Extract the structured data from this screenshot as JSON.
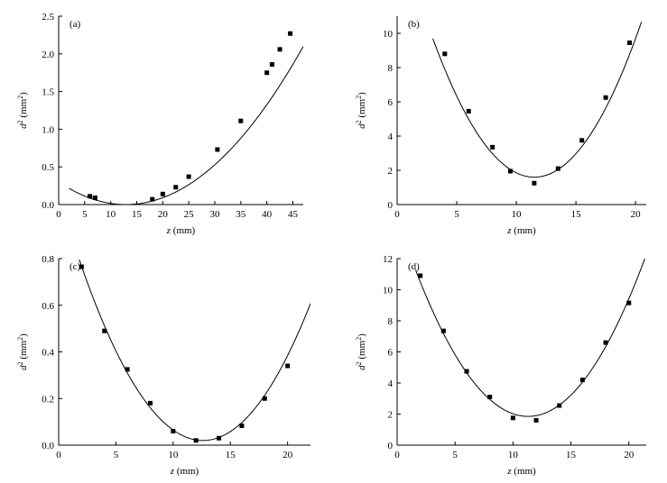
{
  "chart_data": [
    {
      "type": "scatter",
      "panel_label": "(a)",
      "xlabel_var": "z",
      "xlabel_unit": " (mm)",
      "ylabel_var": "d",
      "ylabel_sup": "2",
      "ylabel_unit": " (mm",
      "ylabel_unit_sup": "2",
      "ylabel_close": ")",
      "xlim": [
        0,
        47
      ],
      "ylim": [
        0,
        2.5
      ],
      "xticks": [
        0,
        5,
        10,
        15,
        20,
        25,
        30,
        35,
        40,
        45
      ],
      "yticks": [
        0.0,
        0.5,
        1.0,
        1.5,
        2.0,
        2.5
      ],
      "ytick_labels": [
        "0.0",
        "0.5",
        "1.0",
        "1.5",
        "2.0",
        "2.5"
      ],
      "grid": false,
      "points": [
        {
          "x": 6,
          "y": 0.11
        },
        {
          "x": 7,
          "y": 0.09
        },
        {
          "x": 18,
          "y": 0.07
        },
        {
          "x": 20,
          "y": 0.14
        },
        {
          "x": 22.5,
          "y": 0.23
        },
        {
          "x": 25,
          "y": 0.37
        },
        {
          "x": 30.5,
          "y": 0.73
        },
        {
          "x": 35,
          "y": 1.11
        },
        {
          "x": 40,
          "y": 1.75
        },
        {
          "x": 41,
          "y": 1.86
        },
        {
          "x": 42.5,
          "y": 2.06
        },
        {
          "x": 44.5,
          "y": 2.27
        }
      ],
      "fit": {
        "xmin": 2,
        "xmax": 47,
        "a": 0.001805,
        "x0": 12.9,
        "c": 0.0
      }
    },
    {
      "type": "scatter",
      "panel_label": "(b)",
      "xlabel_var": "z",
      "xlabel_unit": " (mm)",
      "ylabel_var": "d",
      "ylabel_sup": "2",
      "ylabel_unit": " (mm",
      "ylabel_unit_sup": "2",
      "ylabel_close": ")",
      "xlim": [
        0,
        20.9
      ],
      "ylim": [
        0,
        11
      ],
      "xticks": [
        0,
        5,
        10,
        15,
        20
      ],
      "yticks": [
        0,
        2,
        4,
        6,
        8,
        10
      ],
      "ytick_labels": [
        "0",
        "2",
        "4",
        "6",
        "8",
        "10"
      ],
      "grid": false,
      "points": [
        {
          "x": 4,
          "y": 8.8
        },
        {
          "x": 6,
          "y": 5.45
        },
        {
          "x": 8,
          "y": 3.35
        },
        {
          "x": 9.5,
          "y": 1.95
        },
        {
          "x": 11.5,
          "y": 1.25
        },
        {
          "x": 13.5,
          "y": 2.1
        },
        {
          "x": 15.5,
          "y": 3.75
        },
        {
          "x": 17.5,
          "y": 6.25
        },
        {
          "x": 19.5,
          "y": 9.45
        }
      ],
      "fit": {
        "xmin": 3.0,
        "xmax": 20.5,
        "a": 0.112,
        "x0": 11.5,
        "c": 1.6
      }
    },
    {
      "type": "scatter",
      "panel_label": "(c)",
      "xlabel_var": "z",
      "xlabel_unit": " (mm)",
      "ylabel_var": "d",
      "ylabel_sup": "2",
      "ylabel_unit": " (mm",
      "ylabel_unit_sup": "2",
      "ylabel_close": ")",
      "xlim": [
        0,
        22
      ],
      "ylim": [
        0,
        0.8
      ],
      "xticks": [
        0,
        5,
        10,
        15,
        20
      ],
      "yticks": [
        0.0,
        0.2,
        0.4,
        0.6,
        0.8
      ],
      "ytick_labels": [
        "0.0",
        "0.2",
        "0.4",
        "0.6",
        "0.8"
      ],
      "grid": false,
      "points": [
        {
          "x": 2,
          "y": 0.765
        },
        {
          "x": 4,
          "y": 0.49
        },
        {
          "x": 6,
          "y": 0.325
        },
        {
          "x": 8,
          "y": 0.18
        },
        {
          "x": 10,
          "y": 0.06
        },
        {
          "x": 12,
          "y": 0.02
        },
        {
          "x": 14,
          "y": 0.03
        },
        {
          "x": 16,
          "y": 0.083
        },
        {
          "x": 18,
          "y": 0.2
        },
        {
          "x": 20,
          "y": 0.34
        }
      ],
      "fit": {
        "xmin": 1.8,
        "xmax": 22,
        "a": 0.00665,
        "x0": 12.6,
        "c": 0.02
      }
    },
    {
      "type": "scatter",
      "panel_label": "(d)",
      "xlabel_var": "z",
      "xlabel_unit": " (mm)",
      "ylabel_var": "d",
      "ylabel_sup": "2",
      "ylabel_unit": " (mm",
      "ylabel_unit_sup": "2",
      "ylabel_close": ")",
      "xlim": [
        0,
        21.5
      ],
      "ylim": [
        0,
        12
      ],
      "xticks": [
        0,
        5,
        10,
        15,
        20
      ],
      "yticks": [
        0,
        2,
        4,
        6,
        8,
        10,
        12
      ],
      "ytick_labels": [
        "0",
        "2",
        "4",
        "6",
        "8",
        "10",
        "12"
      ],
      "grid": false,
      "points": [
        {
          "x": 2,
          "y": 10.9
        },
        {
          "x": 4,
          "y": 7.35
        },
        {
          "x": 6,
          "y": 4.75
        },
        {
          "x": 8,
          "y": 3.1
        },
        {
          "x": 10,
          "y": 1.75
        },
        {
          "x": 12,
          "y": 1.6
        },
        {
          "x": 14,
          "y": 2.55
        },
        {
          "x": 16,
          "y": 4.2
        },
        {
          "x": 18,
          "y": 6.6
        },
        {
          "x": 20,
          "y": 9.15
        }
      ],
      "fit": {
        "xmin": 1.6,
        "xmax": 21.5,
        "a": 0.1,
        "x0": 11.3,
        "c": 1.85
      }
    }
  ]
}
